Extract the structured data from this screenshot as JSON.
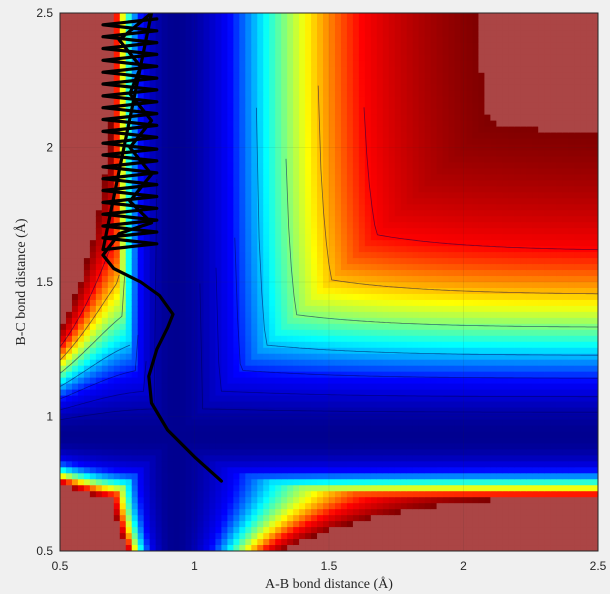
{
  "chart_data": {
    "type": "contour",
    "xlabel": "A-B bond distance (Å)",
    "ylabel": "B-C bond distance (Å)",
    "xlim": [
      0.5,
      2.5
    ],
    "ylim": [
      0.5,
      2.5
    ],
    "x_ticks": [
      "0.5",
      "1",
      "1.5",
      "2",
      "2.5"
    ],
    "y_ticks": [
      "0.5",
      "1",
      "1.5",
      "2",
      "2.5"
    ],
    "grid": true,
    "colormap": "jet",
    "colormap_stops": [
      "#000090",
      "#0000ff",
      "#00ffff",
      "#ffff00",
      "#ff0000",
      "#800000"
    ],
    "plateau_color": "#ab4545",
    "trajectory_color": "#000000",
    "surface": {
      "well_depth": 1.0,
      "well_valley_r": 0.93,
      "valley_bottom_at_r_BC": 0.93,
      "repulsive_wall_r": 0.65
    },
    "trajectory": {
      "start": [
        1.1,
        0.76
      ],
      "path": [
        [
          1.1,
          0.76
        ],
        [
          1.0,
          0.85
        ],
        [
          0.9,
          0.95
        ],
        [
          0.84,
          1.05
        ],
        [
          0.83,
          1.15
        ],
        [
          0.86,
          1.25
        ],
        [
          0.9,
          1.33
        ],
        [
          0.92,
          1.38
        ],
        [
          0.87,
          1.45
        ],
        [
          0.8,
          1.5
        ],
        [
          0.7,
          1.55
        ],
        [
          0.66,
          1.6
        ],
        [
          0.72,
          1.68
        ],
        [
          0.84,
          1.72
        ],
        [
          0.76,
          1.8
        ],
        [
          0.84,
          1.9
        ],
        [
          0.76,
          2.0
        ],
        [
          0.84,
          2.1
        ],
        [
          0.76,
          2.2
        ],
        [
          0.8,
          2.3
        ],
        [
          0.72,
          2.4
        ],
        [
          0.84,
          2.5
        ]
      ]
    }
  }
}
